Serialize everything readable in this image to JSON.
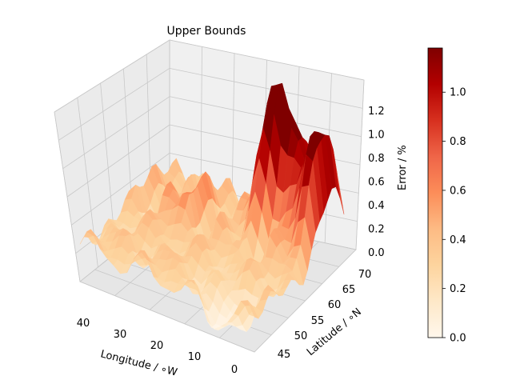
{
  "chart_data": {
    "type": "surface3d",
    "title": "Upper Bounds",
    "xlabel": "Longitude / ∘W",
    "ylabel": "Latitude / ∘N",
    "zlabel": "Error / %",
    "x_ticks": [
      "40",
      "30",
      "20",
      "10",
      "0"
    ],
    "y_ticks": [
      "45",
      "50",
      "55",
      "60",
      "65",
      "70"
    ],
    "z_ticks": [
      "0.0",
      "0.2",
      "0.4",
      "0.6",
      "0.8",
      "1.0",
      "1.2"
    ],
    "xlim": [
      0,
      45
    ],
    "ylim": [
      42,
      72
    ],
    "zlim": [
      0,
      1.4
    ],
    "colormap": "OrRd",
    "colorbar": {
      "ticks": [
        "0.0",
        "0.2",
        "0.4",
        "0.6",
        "0.8",
        "1.0"
      ],
      "range": [
        0,
        1.18
      ]
    },
    "grid": true,
    "surface_samples": [
      {
        "lon": 45,
        "lat": 45,
        "error": 0.25
      },
      {
        "lon": 35,
        "lat": 55,
        "error": 0.55
      },
      {
        "lon": 25,
        "lat": 60,
        "error": 0.4
      },
      {
        "lon": 18,
        "lat": 65,
        "error": 1.05
      },
      {
        "lon": 12,
        "lat": 68,
        "error": 1.25
      },
      {
        "lon": 8,
        "lat": 60,
        "error": 0.9
      },
      {
        "lon": 3,
        "lat": 65,
        "error": 1.15
      },
      {
        "lon": 10,
        "lat": 45,
        "error": 0.05
      }
    ]
  }
}
